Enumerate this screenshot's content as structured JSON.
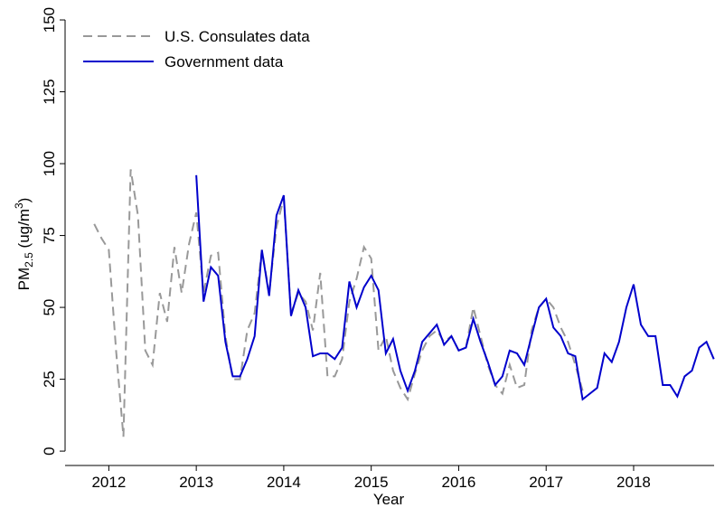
{
  "chart_data": {
    "type": "line",
    "y_label": {
      "text": "PM",
      "sub": "2.5",
      "mid": " (ug/m",
      "sup": "3",
      "end": ")"
    },
    "x_label": "Year",
    "x": [
      2011.833,
      2011.917,
      2012,
      2012.083,
      2012.167,
      2012.25,
      2012.333,
      2012.417,
      2012.5,
      2012.583,
      2012.667,
      2012.75,
      2012.833,
      2012.917,
      2013,
      2013.083,
      2013.167,
      2013.25,
      2013.333,
      2013.417,
      2013.5,
      2013.583,
      2013.667,
      2013.75,
      2013.833,
      2013.917,
      2014,
      2014.083,
      2014.167,
      2014.25,
      2014.333,
      2014.417,
      2014.5,
      2014.583,
      2014.667,
      2014.75,
      2014.833,
      2014.917,
      2015,
      2015.083,
      2015.167,
      2015.25,
      2015.333,
      2015.417,
      2015.5,
      2015.583,
      2015.667,
      2015.75,
      2015.833,
      2015.917,
      2016,
      2016.083,
      2016.167,
      2016.25,
      2016.333,
      2016.417,
      2016.5,
      2016.583,
      2016.667,
      2016.75,
      2016.833,
      2016.917,
      2017,
      2017.083,
      2017.167,
      2017.25,
      2017.333,
      2017.417,
      2017.5,
      2017.583,
      2017.667,
      2017.75,
      2017.833,
      2017.917,
      2018,
      2018.083,
      2018.167,
      2018.25,
      2018.333,
      2018.417,
      2018.5,
      2018.583,
      2018.667,
      2018.75,
      2018.833,
      2018.917
    ],
    "series": [
      {
        "name": "U.S. Consulates data",
        "color": "#999999",
        "dash": true,
        "values": [
          79,
          74,
          70,
          35,
          5,
          98,
          82,
          35,
          30,
          55,
          45,
          71,
          55,
          72,
          83,
          55,
          68,
          69,
          40,
          25,
          25,
          42,
          48,
          70,
          55,
          78,
          88,
          48,
          55,
          52,
          42,
          62,
          26,
          26,
          32,
          52,
          60,
          71,
          67,
          35,
          40,
          28,
          22,
          18,
          27,
          35,
          40,
          42,
          38,
          40,
          35,
          36,
          50,
          40,
          30,
          23,
          20,
          30,
          22,
          23,
          42,
          50,
          53,
          50,
          43,
          38,
          30,
          21,
          null,
          null,
          null,
          null,
          null,
          null,
          null,
          null,
          null,
          null,
          null,
          null,
          null,
          null,
          null,
          null,
          null,
          null
        ]
      },
      {
        "name": "Government data",
        "color": "#0000cc",
        "dash": false,
        "values": [
          null,
          null,
          null,
          null,
          null,
          null,
          null,
          null,
          null,
          null,
          null,
          null,
          null,
          null,
          96,
          52,
          64,
          61,
          38,
          26,
          26,
          32,
          40,
          70,
          54,
          82,
          89,
          47,
          56,
          50,
          33,
          34,
          34,
          32,
          36,
          59,
          50,
          57,
          61,
          56,
          34,
          39,
          28,
          21,
          28,
          38,
          41,
          44,
          37,
          40,
          35,
          36,
          46,
          38,
          31,
          23,
          26,
          35,
          34,
          30,
          40,
          50,
          53,
          43,
          40,
          34,
          33,
          18,
          20,
          22,
          34,
          31,
          38,
          50,
          58,
          44,
          40,
          40,
          23,
          23,
          19,
          26,
          28,
          36,
          38,
          32
        ]
      }
    ],
    "xlim": [
      2011.5,
      2018.92
    ],
    "xticks": [
      2012,
      2013,
      2014,
      2015,
      2016,
      2017,
      2018
    ],
    "ylim": [
      -5,
      153
    ],
    "yticks": [
      0,
      25,
      50,
      75,
      100,
      125,
      150
    ],
    "grid": false,
    "legend": "top-left"
  }
}
